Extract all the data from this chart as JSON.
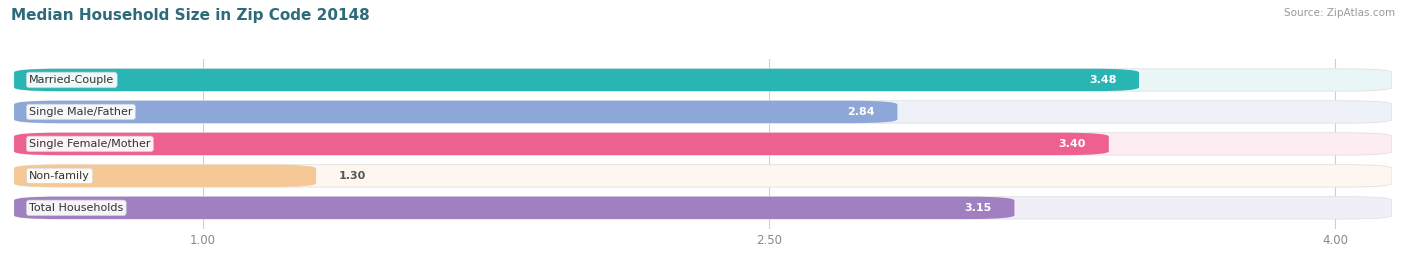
{
  "title": "Median Household Size in Zip Code 20148",
  "source": "Source: ZipAtlas.com",
  "categories": [
    "Married-Couple",
    "Single Male/Father",
    "Single Female/Mother",
    "Non-family",
    "Total Households"
  ],
  "values": [
    3.48,
    2.84,
    3.4,
    1.3,
    3.15
  ],
  "bar_colors": [
    "#2ab5b5",
    "#8da8d8",
    "#ee6090",
    "#f5c896",
    "#a080c0"
  ],
  "bar_bg_colors": [
    "#eaf6f6",
    "#eef1f8",
    "#fdedf3",
    "#fdf7f0",
    "#f2eef8"
  ],
  "xlim_start": 0.5,
  "xlim_end": 4.15,
  "xticks": [
    1.0,
    2.5,
    4.0
  ],
  "title_fontsize": 11,
  "label_fontsize": 8,
  "value_fontsize": 8,
  "background_color": "#ffffff",
  "title_color": "#2e6b7a"
}
